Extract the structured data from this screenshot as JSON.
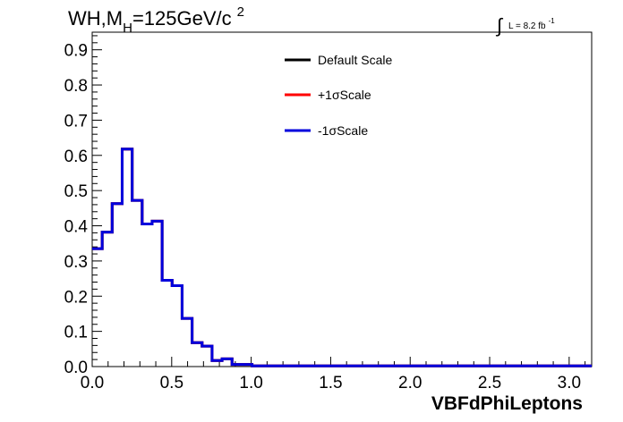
{
  "title": {
    "process": "WH,M",
    "subscript": "H",
    "mass": "=125GeV/c",
    "superscript": "2"
  },
  "lumi": {
    "integral_symbol": "∫",
    "text": "L = 8.2 fb",
    "superscript": "-1"
  },
  "chart_data": {
    "type": "line",
    "style": "step histogram",
    "xlabel": "VBFdPhiLeptons",
    "ylabel": "",
    "xlim": [
      0,
      3.1416
    ],
    "ylim": [
      0,
      0.95
    ],
    "grid": false,
    "legend_position": "top-center",
    "x_ticks": [
      "0.0",
      "0.5",
      "1.0",
      "1.5",
      "2.0",
      "2.5",
      "3.0"
    ],
    "x_tick_values": [
      0,
      0.5,
      1.0,
      1.5,
      2.0,
      2.5,
      3.0
    ],
    "y_ticks": [
      "0.0",
      "0.1",
      "0.2",
      "0.3",
      "0.4",
      "0.5",
      "0.6",
      "0.7",
      "0.8",
      "0.9"
    ],
    "y_tick_values": [
      0,
      0.1,
      0.2,
      0.3,
      0.4,
      0.5,
      0.6,
      0.7,
      0.8,
      0.9
    ],
    "bin_edges": [
      0,
      0.0628,
      0.1257,
      0.1885,
      0.2513,
      0.3142,
      0.377,
      0.4398,
      0.5027,
      0.5655,
      0.6283,
      0.6912,
      0.754,
      0.8168,
      0.8796,
      0.9425,
      1.0053,
      1.0681,
      3.1416
    ],
    "series": [
      {
        "name": "Default Scale",
        "color": "#000000",
        "values": [
          0.335,
          0.382,
          0.463,
          0.618,
          0.472,
          0.405,
          0.413,
          0.245,
          0.23,
          0.137,
          0.068,
          0.058,
          0.017,
          0.022,
          0.006,
          0.006,
          0.002,
          0.002
        ]
      },
      {
        "name": "+1σScale",
        "color": "#ff0000",
        "values": [
          0.335,
          0.382,
          0.463,
          0.618,
          0.472,
          0.405,
          0.413,
          0.245,
          0.23,
          0.137,
          0.068,
          0.058,
          0.017,
          0.022,
          0.006,
          0.006,
          0.002,
          0.002
        ]
      },
      {
        "name": "-1σScale",
        "color": "#0000dd",
        "values": [
          0.335,
          0.382,
          0.463,
          0.618,
          0.472,
          0.405,
          0.413,
          0.245,
          0.23,
          0.137,
          0.068,
          0.058,
          0.017,
          0.022,
          0.006,
          0.006,
          0.002,
          0.002
        ]
      }
    ]
  }
}
